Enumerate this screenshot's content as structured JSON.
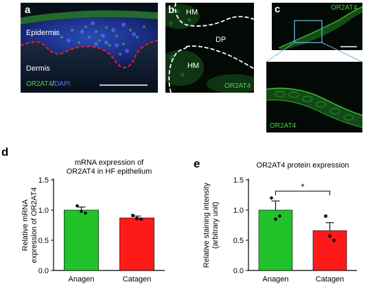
{
  "figure": {
    "panel_a": {
      "letter": "a",
      "label_epidermis": "Epidermis",
      "label_dermis": "Dermis",
      "stain_marker": "OR2AT4",
      "stain_sep": "/",
      "stain_nuclear": "DAPI"
    },
    "panel_b": {
      "letter": "b",
      "label_hm_top": "HM",
      "label_dp": "DP",
      "label_hm_bottom": "HM",
      "stain": "OR2AT4"
    },
    "panel_c": {
      "letter": "c",
      "stain_top": "OR2AT4",
      "stain_zoom": "OR2AT4"
    },
    "colors": {
      "green_bar": "#22c22a",
      "red_bar": "#ff1a1a",
      "stain_green": "#3ddc3d",
      "dapi_blue": "#2040c8",
      "outline_red": "#e02020",
      "zoom_box": "#6ab4e8"
    }
  },
  "chart_data": [
    {
      "panel": "d",
      "type": "bar",
      "title_line1": "mRNA expression of",
      "title_line2": "OR2AT4 in HF epithelium",
      "ylabel_line1": "Relative mRNA",
      "ylabel_line2": "expression of OR2AT4",
      "categories": [
        "Anagen",
        "Catagen"
      ],
      "values": [
        1.0,
        0.87
      ],
      "errors": [
        0.05,
        0.03
      ],
      "points": [
        [
          1.07,
          0.98,
          0.95
        ],
        [
          0.91,
          0.86,
          0.85
        ]
      ],
      "colors": [
        "#22c22a",
        "#ff1a1a"
      ],
      "ylim": [
        0.0,
        1.5
      ],
      "yticks": [
        "0.0",
        "0.5",
        "1.0",
        "1.5"
      ],
      "significance": ""
    },
    {
      "panel": "e",
      "type": "bar",
      "title_line1": "OR2AT4 protein expression",
      "title_line2": "",
      "ylabel_line1": "Relative staining intensity",
      "ylabel_line2": "(arbitrary unit)",
      "categories": [
        "Anagen",
        "Catagen"
      ],
      "values": [
        1.0,
        0.66
      ],
      "errors": [
        0.15,
        0.13
      ],
      "points": [
        [
          1.2,
          0.85,
          0.9
        ],
        [
          0.9,
          0.57,
          0.5
        ]
      ],
      "colors": [
        "#22c22a",
        "#ff1a1a"
      ],
      "ylim": [
        0.0,
        1.5
      ],
      "yticks": [
        "0.0",
        "0.5",
        "1.0",
        "1.5"
      ],
      "significance": "*"
    }
  ]
}
